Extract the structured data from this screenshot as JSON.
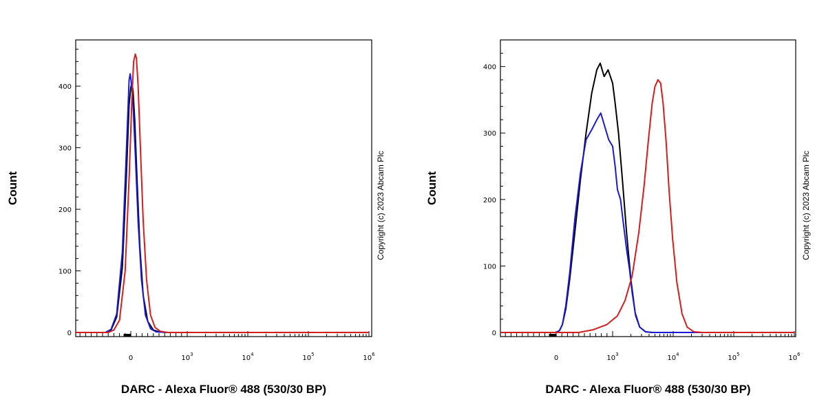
{
  "chart_data": [
    {
      "type": "line",
      "xlabel": "DARC - Alexa Fluor® 488 (530/30 BP)",
      "ylabel": "Count",
      "watermark": "Copyright (c) 2023 Abcam Plc",
      "x_scale": "biexponential",
      "xlim": [
        -1500,
        1000000
      ],
      "ylim": [
        0,
        475
      ],
      "y_ticks": [
        0,
        100,
        200,
        300,
        400
      ],
      "x_ticks": [
        {
          "value": 0,
          "base": "0",
          "exp": ""
        },
        {
          "value": 1000,
          "base": "10",
          "exp": "3"
        },
        {
          "value": 10000,
          "base": "10",
          "exp": "4"
        },
        {
          "value": 100000,
          "base": "10",
          "exp": "5"
        },
        {
          "value": 1000000,
          "base": "10",
          "exp": "6"
        }
      ],
      "series": [
        {
          "color": "#000000",
          "points": [
            [
              -1500,
              0
            ],
            [
              -450,
              0
            ],
            [
              -350,
              4
            ],
            [
              -250,
              25
            ],
            [
              -150,
              105
            ],
            [
              -80,
              250
            ],
            [
              -30,
              370
            ],
            [
              0,
              398
            ],
            [
              20,
              404
            ],
            [
              40,
              392
            ],
            [
              70,
              345
            ],
            [
              110,
              250
            ],
            [
              160,
              140
            ],
            [
              220,
              60
            ],
            [
              300,
              18
            ],
            [
              400,
              4
            ],
            [
              500,
              1
            ],
            [
              650,
              0
            ],
            [
              1000000,
              0
            ]
          ]
        },
        {
          "color": "#1a1ad6",
          "points": [
            [
              -1500,
              0
            ],
            [
              -450,
              0
            ],
            [
              -350,
              5
            ],
            [
              -250,
              30
            ],
            [
              -150,
              130
            ],
            [
              -80,
              290
            ],
            [
              -30,
              410
            ],
            [
              -10,
              420
            ],
            [
              10,
              405
            ],
            [
              40,
              370
            ],
            [
              80,
              290
            ],
            [
              130,
              180
            ],
            [
              190,
              85
            ],
            [
              260,
              28
            ],
            [
              350,
              6
            ],
            [
              450,
              1
            ],
            [
              650,
              0
            ],
            [
              1000000,
              0
            ]
          ]
        },
        {
          "color": "#d41e1e",
          "points": [
            [
              -1500,
              0
            ],
            [
              -400,
              0
            ],
            [
              -300,
              4
            ],
            [
              -200,
              20
            ],
            [
              -100,
              100
            ],
            [
              -30,
              250
            ],
            [
              20,
              380
            ],
            [
              50,
              440
            ],
            [
              80,
              452
            ],
            [
              100,
              445
            ],
            [
              130,
              400
            ],
            [
              170,
              300
            ],
            [
              220,
              180
            ],
            [
              280,
              85
            ],
            [
              350,
              28
            ],
            [
              430,
              8
            ],
            [
              520,
              2
            ],
            [
              650,
              0
            ],
            [
              1000000,
              0
            ]
          ]
        }
      ]
    },
    {
      "type": "line",
      "xlabel": "DARC - Alexa Fluor® 488 (530/30 BP)",
      "ylabel": "Count",
      "watermark": "Copyright (c) 2023 Abcam Plc",
      "x_scale": "biexponential",
      "xlim": [
        -1500,
        1000000
      ],
      "ylim": [
        0,
        440
      ],
      "y_ticks": [
        0,
        100,
        200,
        300,
        400
      ],
      "x_ticks": [
        {
          "value": 0,
          "base": "0",
          "exp": ""
        },
        {
          "value": 1000,
          "base": "10",
          "exp": "3"
        },
        {
          "value": 10000,
          "base": "10",
          "exp": "4"
        },
        {
          "value": 100000,
          "base": "10",
          "exp": "5"
        },
        {
          "value": 1000000,
          "base": "10",
          "exp": "6"
        }
      ],
      "series": [
        {
          "color": "#000000",
          "points": [
            [
              -1500,
              0
            ],
            [
              0,
              0
            ],
            [
              60,
              3
            ],
            [
              110,
              12
            ],
            [
              170,
              35
            ],
            [
              240,
              80
            ],
            [
              330,
              150
            ],
            [
              430,
              230
            ],
            [
              530,
              300
            ],
            [
              630,
              360
            ],
            [
              720,
              395
            ],
            [
              780,
              405
            ],
            [
              850,
              385
            ],
            [
              920,
              395
            ],
            [
              1000,
              375
            ],
            [
              1100,
              345
            ],
            [
              1250,
              300
            ],
            [
              1450,
              230
            ],
            [
              1700,
              150
            ],
            [
              2000,
              80
            ],
            [
              2350,
              30
            ],
            [
              2800,
              8
            ],
            [
              3500,
              1
            ],
            [
              4500,
              0
            ],
            [
              1000000,
              0
            ]
          ]
        },
        {
          "color": "#1a1ad6",
          "points": [
            [
              -1500,
              0
            ],
            [
              0,
              0
            ],
            [
              60,
              3
            ],
            [
              110,
              12
            ],
            [
              170,
              40
            ],
            [
              240,
              90
            ],
            [
              330,
              170
            ],
            [
              430,
              240
            ],
            [
              530,
              290
            ],
            [
              630,
              305
            ],
            [
              720,
              320
            ],
            [
              790,
              330
            ],
            [
              860,
              310
            ],
            [
              930,
              290
            ],
            [
              1000,
              280
            ],
            [
              1100,
              250
            ],
            [
              1200,
              215
            ],
            [
              1350,
              200
            ],
            [
              1500,
              165
            ],
            [
              1700,
              125
            ],
            [
              1900,
              95
            ],
            [
              2100,
              60
            ],
            [
              2400,
              25
            ],
            [
              2800,
              8
            ],
            [
              3500,
              1
            ],
            [
              4500,
              0
            ],
            [
              1000000,
              0
            ]
          ]
        },
        {
          "color": "#d41e1e",
          "points": [
            [
              -1500,
              0
            ],
            [
              400,
              0
            ],
            [
              650,
              4
            ],
            [
              900,
              12
            ],
            [
              1200,
              25
            ],
            [
              1600,
              48
            ],
            [
              2100,
              85
            ],
            [
              2700,
              150
            ],
            [
              3300,
              220
            ],
            [
              3900,
              290
            ],
            [
              4500,
              345
            ],
            [
              5000,
              370
            ],
            [
              5600,
              380
            ],
            [
              6200,
              375
            ],
            [
              6800,
              345
            ],
            [
              7600,
              290
            ],
            [
              8600,
              210
            ],
            [
              9800,
              140
            ],
            [
              11500,
              75
            ],
            [
              14000,
              28
            ],
            [
              17000,
              8
            ],
            [
              22000,
              1
            ],
            [
              30000,
              0
            ],
            [
              1000000,
              0
            ]
          ]
        }
      ]
    }
  ]
}
